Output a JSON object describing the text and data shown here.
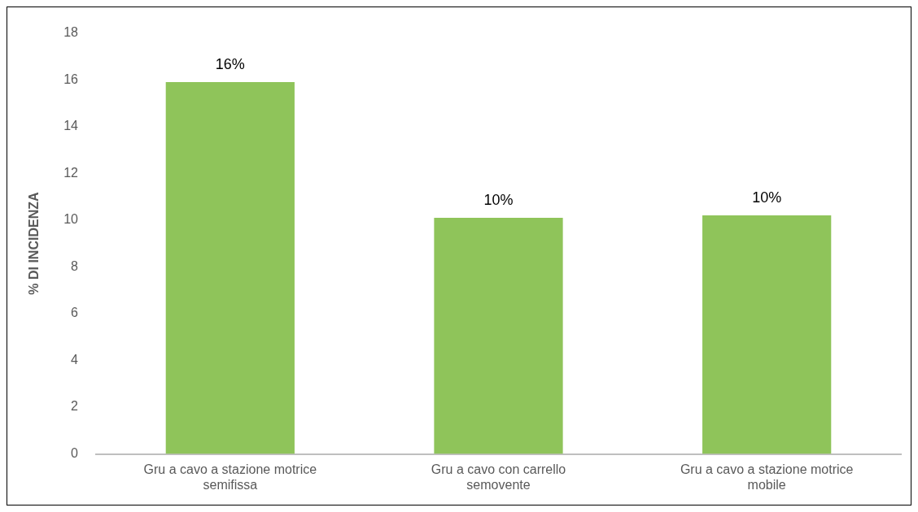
{
  "chart_data": {
    "type": "bar",
    "ylabel": "% DI INCIDENZA",
    "categories": [
      "Gru a cavo a stazione motrice semifissa",
      "Gru a cavo con carrello semovente",
      "Gru a cavo a stazione motrice mobile"
    ],
    "values": [
      15.9,
      10.1,
      10.2
    ],
    "value_labels": [
      "16%",
      "10%",
      "10%"
    ],
    "color": "#8fc45a",
    "ylim": [
      0,
      18
    ],
    "yticks": [
      0,
      2,
      4,
      6,
      8,
      10,
      12,
      14,
      16,
      18
    ],
    "grid": false,
    "legend": false
  }
}
